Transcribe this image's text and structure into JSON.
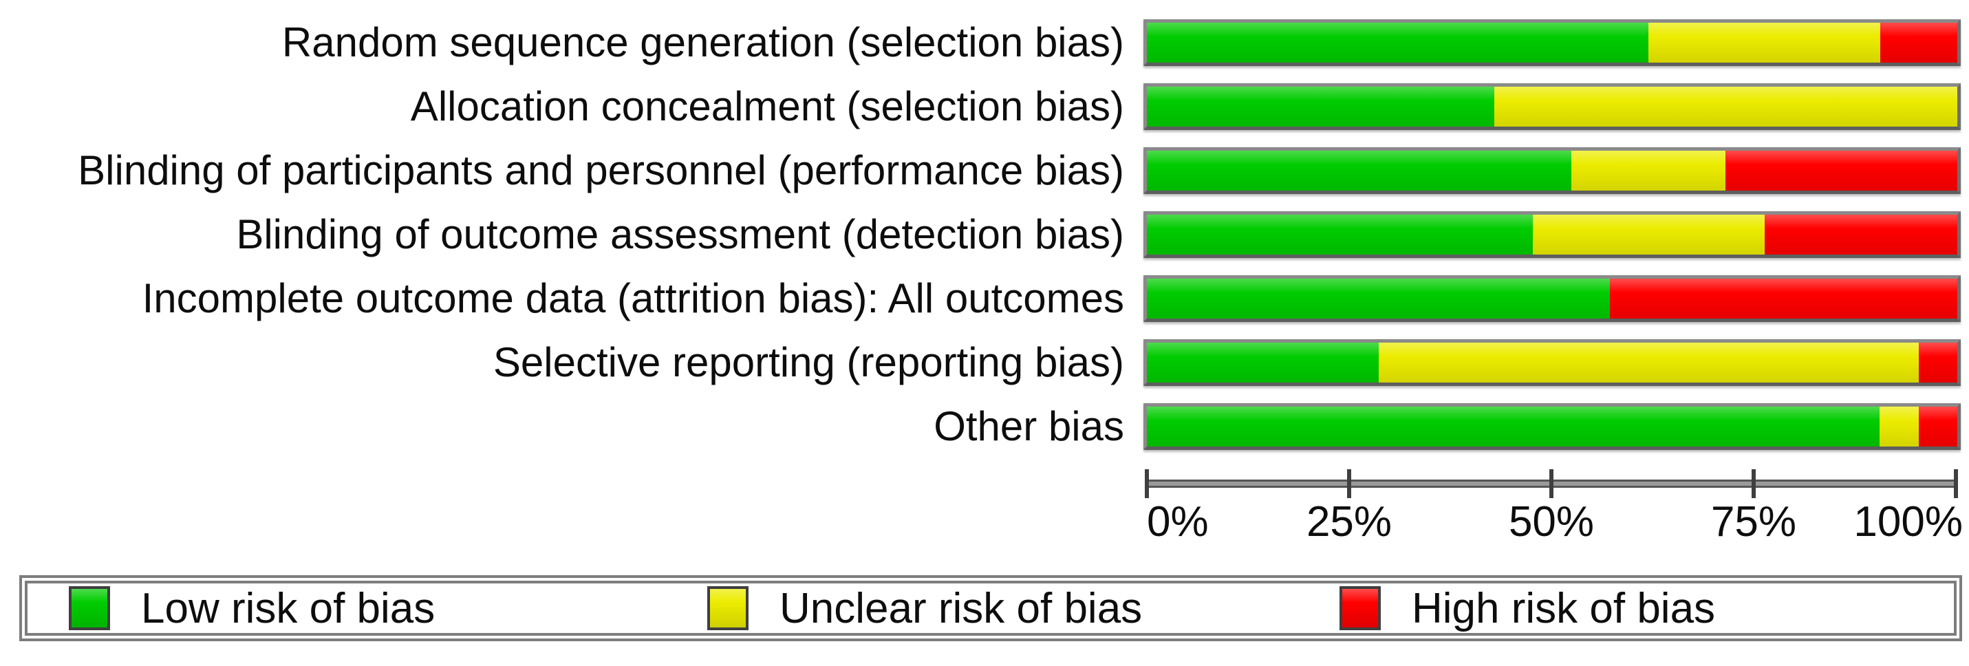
{
  "chart_data": {
    "type": "bar",
    "orientation": "horizontal_stacked",
    "unit": "percent",
    "title": "",
    "categories": [
      "Random sequence generation (selection bias)",
      "Allocation concealment (selection bias)",
      "Blinding of participants and personnel (performance bias)",
      "Blinding of outcome assessment (detection bias)",
      "Incomplete outcome data (attrition bias): All outcomes",
      "Selective reporting (reporting bias)",
      "Other bias"
    ],
    "series": [
      {
        "name": "Low risk of bias",
        "color": "#00cc00",
        "values": [
          61.9,
          42.9,
          52.4,
          47.6,
          57.1,
          28.6,
          90.5
        ]
      },
      {
        "name": "Unclear risk of bias",
        "color": "#ecec00",
        "values": [
          28.6,
          57.1,
          19.0,
          28.6,
          0.0,
          66.7,
          4.8
        ]
      },
      {
        "name": "High risk of bias",
        "color": "#ff0000",
        "values": [
          9.5,
          0.0,
          28.6,
          23.8,
          42.9,
          4.8,
          4.8
        ]
      }
    ],
    "x_axis": {
      "min": 0,
      "max": 100,
      "tick_labels": [
        "0%",
        "25%",
        "50%",
        "75%",
        "100%"
      ],
      "tick_values": [
        0,
        25,
        50,
        75,
        100
      ]
    },
    "legend": {
      "position": "bottom",
      "entries": [
        "Low risk of bias",
        "Unclear risk of bias",
        "High risk of bias"
      ]
    },
    "grid": false
  },
  "colors": {
    "low_risk": "#00cc00",
    "unclear_risk": "#ecec00",
    "high_risk": "#ff0000",
    "bar_border": "#7a7a7a",
    "axis": "#565656",
    "text": "#0d0d0d",
    "background": "#ffffff"
  }
}
